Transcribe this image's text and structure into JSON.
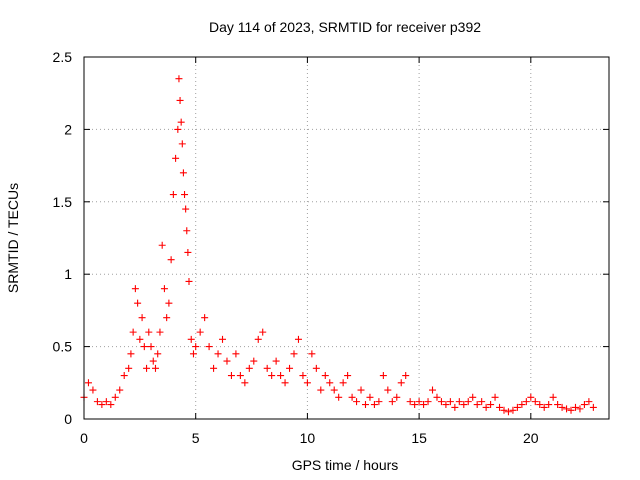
{
  "chart_data": {
    "type": "scatter",
    "title": "Day 114 of 2023, SRMTID for receiver p392",
    "xlabel": "GPS time / hours",
    "ylabel": "SRMTID / TECUs",
    "xlim": [
      0,
      23.5
    ],
    "ylim": [
      0,
      2.5
    ],
    "xticks": [
      0,
      5,
      10,
      15,
      20
    ],
    "xtick_labels": [
      "0",
      "5",
      "10",
      "15",
      "20"
    ],
    "yticks": [
      0,
      0.5,
      1,
      1.5,
      2,
      2.5
    ],
    "ytick_labels": [
      "0",
      "0.5",
      "1",
      "1.5",
      "2",
      "2.5"
    ],
    "grid": true,
    "marker": "+",
    "color": "#ff0000",
    "series": [
      {
        "name": "SRMTID",
        "x": [
          0.0,
          0.2,
          0.4,
          0.6,
          0.8,
          1.0,
          1.2,
          1.4,
          1.6,
          1.8,
          2.0,
          2.1,
          2.2,
          2.3,
          2.4,
          2.5,
          2.6,
          2.7,
          2.8,
          2.9,
          3.0,
          3.1,
          3.2,
          3.3,
          3.4,
          3.5,
          3.6,
          3.7,
          3.8,
          3.9,
          4.0,
          4.1,
          4.2,
          4.25,
          4.3,
          4.35,
          4.4,
          4.45,
          4.5,
          4.55,
          4.6,
          4.65,
          4.7,
          4.8,
          4.9,
          5.0,
          5.2,
          5.4,
          5.6,
          5.8,
          6.0,
          6.2,
          6.4,
          6.6,
          6.8,
          7.0,
          7.2,
          7.4,
          7.6,
          7.8,
          8.0,
          8.2,
          8.4,
          8.6,
          8.8,
          9.0,
          9.2,
          9.4,
          9.6,
          9.8,
          10.0,
          10.2,
          10.4,
          10.6,
          10.8,
          11.0,
          11.2,
          11.4,
          11.6,
          11.8,
          12.0,
          12.2,
          12.4,
          12.6,
          12.8,
          13.0,
          13.2,
          13.4,
          13.6,
          13.8,
          14.0,
          14.2,
          14.4,
          14.6,
          14.8,
          15.0,
          15.2,
          15.4,
          15.6,
          15.8,
          16.0,
          16.2,
          16.4,
          16.6,
          16.8,
          17.0,
          17.2,
          17.4,
          17.6,
          17.8,
          18.0,
          18.2,
          18.4,
          18.6,
          18.8,
          19.0,
          19.2,
          19.4,
          19.6,
          19.8,
          20.0,
          20.2,
          20.4,
          20.6,
          20.8,
          21.0,
          21.2,
          21.4,
          21.6,
          21.8,
          22.0,
          22.2,
          22.4,
          22.6,
          22.8
        ],
        "y": [
          0.15,
          0.25,
          0.2,
          0.12,
          0.1,
          0.12,
          0.1,
          0.15,
          0.2,
          0.3,
          0.35,
          0.45,
          0.6,
          0.9,
          0.8,
          0.55,
          0.7,
          0.5,
          0.35,
          0.6,
          0.5,
          0.4,
          0.35,
          0.45,
          0.6,
          1.2,
          0.9,
          0.7,
          0.8,
          1.1,
          1.55,
          1.8,
          2.0,
          2.35,
          2.2,
          2.05,
          1.9,
          1.7,
          1.55,
          1.45,
          1.3,
          1.15,
          0.95,
          0.55,
          0.45,
          0.5,
          0.6,
          0.7,
          0.5,
          0.35,
          0.45,
          0.55,
          0.4,
          0.3,
          0.45,
          0.3,
          0.25,
          0.35,
          0.4,
          0.55,
          0.6,
          0.35,
          0.3,
          0.4,
          0.3,
          0.25,
          0.35,
          0.45,
          0.55,
          0.3,
          0.25,
          0.45,
          0.35,
          0.2,
          0.3,
          0.25,
          0.2,
          0.15,
          0.25,
          0.3,
          0.15,
          0.12,
          0.2,
          0.1,
          0.15,
          0.1,
          0.12,
          0.3,
          0.2,
          0.12,
          0.15,
          0.25,
          0.3,
          0.12,
          0.1,
          0.12,
          0.1,
          0.12,
          0.2,
          0.15,
          0.12,
          0.1,
          0.12,
          0.08,
          0.12,
          0.1,
          0.12,
          0.15,
          0.1,
          0.12,
          0.08,
          0.1,
          0.15,
          0.08,
          0.06,
          0.05,
          0.06,
          0.08,
          0.1,
          0.12,
          0.15,
          0.12,
          0.1,
          0.08,
          0.1,
          0.15,
          0.1,
          0.08,
          0.07,
          0.06,
          0.08,
          0.07,
          0.1,
          0.12,
          0.08
        ]
      }
    ]
  }
}
